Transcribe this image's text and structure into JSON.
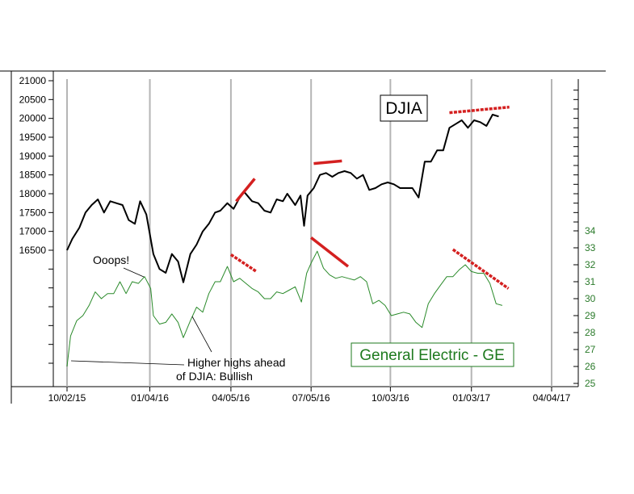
{
  "chart_data": {
    "type": "line",
    "title": "",
    "x": [
      "10/02/15",
      "01/04/16",
      "04/05/16",
      "07/05/16",
      "10/03/16",
      "01/03/17",
      "04/04/17"
    ],
    "y_left": {
      "ticks": [
        21000,
        20500,
        20000,
        19500,
        19000,
        18500,
        18000,
        17500,
        17000,
        16500
      ]
    },
    "y_right": {
      "ticks": [
        34,
        33,
        32,
        31,
        30,
        29,
        28,
        27,
        26,
        25
      ]
    },
    "grid": "vertical",
    "series": [
      {
        "name": "DJIA",
        "axis": "left",
        "color": "#000000",
        "points": [
          [
            "10/02/15",
            16500
          ],
          [
            "10/08/15",
            16800
          ],
          [
            "10/16/15",
            17100
          ],
          [
            "10/23/15",
            17500
          ],
          [
            "10/30/15",
            17700
          ],
          [
            "11/06/15",
            17850
          ],
          [
            "11/13/15",
            17500
          ],
          [
            "11/20/15",
            17800
          ],
          [
            "11/27/15",
            17750
          ],
          [
            "12/04/15",
            17700
          ],
          [
            "12/11/15",
            17300
          ],
          [
            "12/18/15",
            17200
          ],
          [
            "12/24/15",
            17800
          ],
          [
            "12/31/15",
            17450
          ],
          [
            "01/08/16",
            16400
          ],
          [
            "01/15/16",
            16000
          ],
          [
            "01/22/16",
            15900
          ],
          [
            "01/29/16",
            16400
          ],
          [
            "02/05/16",
            16200
          ],
          [
            "02/11/16",
            15650
          ],
          [
            "02/19/16",
            16400
          ],
          [
            "02/26/16",
            16650
          ],
          [
            "03/04/16",
            17000
          ],
          [
            "03/11/16",
            17200
          ],
          [
            "03/18/16",
            17500
          ],
          [
            "03/24/16",
            17550
          ],
          [
            "04/01/16",
            17750
          ],
          [
            "04/08/16",
            17600
          ],
          [
            "04/15/16",
            17900
          ],
          [
            "04/20/16",
            18050
          ],
          [
            "04/29/16",
            17800
          ],
          [
            "05/06/16",
            17750
          ],
          [
            "05/13/16",
            17550
          ],
          [
            "05/20/16",
            17500
          ],
          [
            "05/27/16",
            17850
          ],
          [
            "06/03/16",
            17800
          ],
          [
            "06/08/16",
            18000
          ],
          [
            "06/17/16",
            17700
          ],
          [
            "06/23/16",
            17950
          ],
          [
            "06/27/16",
            17150
          ],
          [
            "07/01/16",
            17950
          ],
          [
            "07/08/16",
            18150
          ],
          [
            "07/15/16",
            18500
          ],
          [
            "07/22/16",
            18550
          ],
          [
            "07/29/16",
            18450
          ],
          [
            "08/05/16",
            18550
          ],
          [
            "08/12/16",
            18600
          ],
          [
            "08/19/16",
            18550
          ],
          [
            "08/26/16",
            18400
          ],
          [
            "09/02/16",
            18500
          ],
          [
            "09/09/16",
            18100
          ],
          [
            "09/16/16",
            18150
          ],
          [
            "09/23/16",
            18250
          ],
          [
            "09/30/16",
            18300
          ],
          [
            "10/07/16",
            18250
          ],
          [
            "10/14/16",
            18150
          ],
          [
            "10/21/16",
            18150
          ],
          [
            "10/28/16",
            18150
          ],
          [
            "11/04/16",
            17900
          ],
          [
            "11/11/16",
            18850
          ],
          [
            "11/18/16",
            18850
          ],
          [
            "11/25/16",
            19150
          ],
          [
            "12/02/16",
            19150
          ],
          [
            "12/09/16",
            19750
          ],
          [
            "12/16/16",
            19850
          ],
          [
            "12/23/16",
            19950
          ],
          [
            "12/30/16",
            19750
          ],
          [
            "01/06/17",
            19950
          ],
          [
            "01/13/17",
            19900
          ],
          [
            "01/20/17",
            19800
          ],
          [
            "01/27/17",
            20100
          ],
          [
            "02/03/17",
            20050
          ]
        ]
      },
      {
        "name": "General Electric - GE",
        "axis": "right",
        "color": "#2a8a2a",
        "points": [
          [
            "10/02/15",
            26.0
          ],
          [
            "10/06/15",
            27.8
          ],
          [
            "10/13/15",
            28.7
          ],
          [
            "10/20/15",
            29.0
          ],
          [
            "10/27/15",
            29.6
          ],
          [
            "11/03/15",
            30.4
          ],
          [
            "11/10/15",
            30.0
          ],
          [
            "11/17/15",
            30.3
          ],
          [
            "11/24/15",
            30.3
          ],
          [
            "12/01/15",
            31.0
          ],
          [
            "12/08/15",
            30.3
          ],
          [
            "12/15/15",
            31.0
          ],
          [
            "12/22/15",
            30.9
          ],
          [
            "12/29/15",
            31.3
          ],
          [
            "01/05/16",
            30.6
          ],
          [
            "01/08/16",
            29.0
          ],
          [
            "01/15/16",
            28.5
          ],
          [
            "01/22/16",
            28.6
          ],
          [
            "01/29/16",
            29.1
          ],
          [
            "02/05/16",
            28.6
          ],
          [
            "02/11/16",
            27.7
          ],
          [
            "02/19/16",
            28.7
          ],
          [
            "02/26/16",
            29.5
          ],
          [
            "03/04/16",
            29.2
          ],
          [
            "03/11/16",
            30.3
          ],
          [
            "03/18/16",
            31.0
          ],
          [
            "03/24/16",
            31.0
          ],
          [
            "04/01/16",
            31.9
          ],
          [
            "04/08/16",
            31.0
          ],
          [
            "04/15/16",
            31.2
          ],
          [
            "04/22/16",
            30.9
          ],
          [
            "04/29/16",
            30.6
          ],
          [
            "05/06/16",
            30.4
          ],
          [
            "05/13/16",
            30.0
          ],
          [
            "05/20/16",
            30.0
          ],
          [
            "05/27/16",
            30.4
          ],
          [
            "06/03/16",
            30.3
          ],
          [
            "06/10/16",
            30.5
          ],
          [
            "06/17/16",
            30.7
          ],
          [
            "06/24/16",
            29.8
          ],
          [
            "06/30/16",
            31.5
          ],
          [
            "07/05/16",
            32.1
          ],
          [
            "07/12/16",
            32.8
          ],
          [
            "07/19/16",
            31.8
          ],
          [
            "07/26/16",
            31.4
          ],
          [
            "08/02/16",
            31.2
          ],
          [
            "08/09/16",
            31.3
          ],
          [
            "08/16/16",
            31.2
          ],
          [
            "08/23/16",
            31.1
          ],
          [
            "08/30/16",
            31.3
          ],
          [
            "09/06/16",
            31.0
          ],
          [
            "09/13/16",
            29.7
          ],
          [
            "09/20/16",
            29.9
          ],
          [
            "09/27/16",
            29.6
          ],
          [
            "10/04/16",
            29.0
          ],
          [
            "10/11/16",
            29.1
          ],
          [
            "10/18/16",
            29.2
          ],
          [
            "10/25/16",
            29.1
          ],
          [
            "11/01/16",
            28.6
          ],
          [
            "11/08/16",
            28.3
          ],
          [
            "11/15/16",
            29.7
          ],
          [
            "11/22/16",
            30.3
          ],
          [
            "11/29/16",
            30.8
          ],
          [
            "12/06/16",
            31.3
          ],
          [
            "12/13/16",
            31.3
          ],
          [
            "12/20/16",
            31.7
          ],
          [
            "12/27/16",
            32.0
          ],
          [
            "01/03/17",
            31.6
          ],
          [
            "01/10/17",
            31.5
          ],
          [
            "01/17/17",
            31.5
          ],
          [
            "01/24/17",
            30.9
          ],
          [
            "01/31/17",
            29.7
          ],
          [
            "02/07/17",
            29.6
          ]
        ]
      }
    ],
    "trendlines": [
      {
        "axis": "left",
        "color": "#d42020",
        "style": "solid",
        "from": [
          "04/11/16",
          17800
        ],
        "to": [
          "05/02/16",
          18400
        ]
      },
      {
        "axis": "left",
        "color": "#d42020",
        "style": "solid",
        "from": [
          "07/08/16",
          18800
        ],
        "to": [
          "08/09/16",
          18870
        ]
      },
      {
        "axis": "left",
        "color": "#d42020",
        "style": "dashed",
        "from": [
          "12/09/16",
          20150
        ],
        "to": [
          "02/15/17",
          20300
        ]
      },
      {
        "axis": "right",
        "color": "#d42020",
        "style": "dashed",
        "from": [
          "04/05/16",
          32.6
        ],
        "to": [
          "05/04/16",
          31.6
        ]
      },
      {
        "axis": "right",
        "color": "#d42020",
        "style": "solid",
        "from": [
          "07/05/16",
          33.6
        ],
        "to": [
          "08/16/16",
          31.9
        ]
      },
      {
        "axis": "right",
        "color": "#d42020",
        "style": "dashed",
        "from": [
          "12/13/16",
          32.9
        ],
        "to": [
          "02/14/17",
          30.6
        ]
      }
    ],
    "labels": {
      "djia_box": "DJIA",
      "ge_box": "General Electric - GE",
      "annot_ooops": "Ooops!",
      "annot_higher_1": "Higher highs ahead",
      "annot_higher_2": "of DJIA: Bullish"
    }
  }
}
